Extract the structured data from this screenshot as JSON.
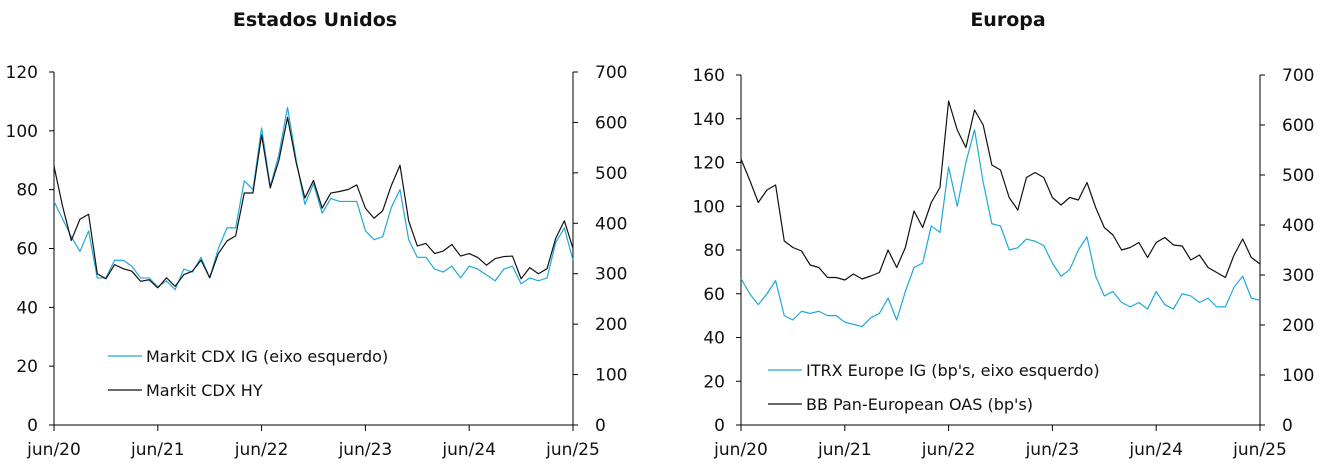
{
  "colors": {
    "ig": "#1fa9d9",
    "hy": "#111111",
    "axis": "#000000"
  },
  "chart_data": [
    {
      "type": "line",
      "title": "Estados Unidos",
      "xlabel": "",
      "ylabel": "",
      "x_ticks": [
        "jun/20",
        "jun/21",
        "jun/22",
        "jun/23",
        "jun/24",
        "jun/25"
      ],
      "x_range": [
        0,
        60
      ],
      "y_left": {
        "lim": [
          0,
          120
        ],
        "ticks": [
          0,
          20,
          40,
          60,
          80,
          100,
          120
        ]
      },
      "y_right": {
        "lim": [
          0,
          700
        ],
        "ticks": [
          0,
          100,
          200,
          300,
          400,
          500,
          600,
          700
        ]
      },
      "legend_position": "bottom-left",
      "series": [
        {
          "name": "Markit CDX IG (eixo esquerdo)",
          "axis": "left",
          "color_key": "ig",
          "x": [
            0,
            1,
            2,
            3,
            4,
            5,
            6,
            7,
            8,
            9,
            10,
            11,
            12,
            13,
            14,
            15,
            16,
            17,
            18,
            19,
            20,
            21,
            22,
            23,
            24,
            25,
            26,
            27,
            28,
            29,
            30,
            31,
            32,
            33,
            34,
            35,
            36,
            37,
            38,
            39,
            40,
            41,
            42,
            43,
            44,
            45,
            46,
            47,
            48,
            49,
            50,
            51,
            52,
            53,
            54,
            55,
            56,
            57,
            58,
            59,
            60
          ],
          "values": [
            76,
            70,
            64,
            59,
            66,
            50,
            50,
            56,
            56,
            54,
            50,
            50,
            47,
            49,
            46,
            53,
            52,
            57,
            50,
            60,
            67,
            67,
            83,
            80,
            101,
            81,
            92,
            108,
            90,
            75,
            82,
            72,
            77,
            76,
            76,
            76,
            66,
            63,
            64,
            74,
            80,
            63,
            57,
            57,
            53,
            52,
            54,
            50,
            54,
            53,
            51,
            49,
            53,
            54,
            48,
            50,
            49,
            50,
            62,
            67,
            56
          ]
        },
        {
          "name": "Markit CDX HY",
          "axis": "right",
          "color_key": "hy",
          "x": [
            0,
            1,
            2,
            3,
            4,
            5,
            6,
            7,
            8,
            9,
            10,
            11,
            12,
            13,
            14,
            15,
            16,
            17,
            18,
            19,
            20,
            21,
            22,
            23,
            24,
            25,
            26,
            27,
            28,
            29,
            30,
            31,
            32,
            33,
            34,
            35,
            36,
            37,
            38,
            39,
            40,
            41,
            42,
            43,
            44,
            45,
            46,
            47,
            48,
            49,
            50,
            51,
            52,
            53,
            54,
            55,
            56,
            57,
            58,
            59,
            60
          ],
          "values": [
            513,
            433,
            366,
            408,
            418,
            300,
            290,
            318,
            310,
            305,
            285,
            288,
            272,
            292,
            275,
            298,
            305,
            327,
            292,
            340,
            365,
            375,
            460,
            460,
            575,
            470,
            525,
            610,
            520,
            450,
            485,
            430,
            460,
            463,
            467,
            476,
            430,
            410,
            425,
            475,
            515,
            405,
            355,
            360,
            340,
            345,
            358,
            335,
            340,
            332,
            317,
            330,
            334,
            335,
            290,
            312,
            300,
            310,
            370,
            405,
            350
          ]
        }
      ]
    },
    {
      "type": "line",
      "title": "Europa",
      "xlabel": "",
      "ylabel": "",
      "x_ticks": [
        "jun/20",
        "jun/21",
        "jun/22",
        "jun/23",
        "jun/24",
        "jun/25"
      ],
      "x_range": [
        0,
        60
      ],
      "y_left": {
        "lim": [
          0,
          160
        ],
        "ticks": [
          0,
          20,
          40,
          60,
          80,
          100,
          120,
          140,
          160
        ]
      },
      "y_right": {
        "lim": [
          0,
          700
        ],
        "ticks": [
          0,
          100,
          200,
          300,
          400,
          500,
          600,
          700
        ]
      },
      "legend_position": "bottom-left",
      "series": [
        {
          "name": "ITRX Europe IG (bp's, eixo esquerdo)",
          "axis": "left",
          "color_key": "ig",
          "x": [
            0,
            1,
            2,
            3,
            4,
            5,
            6,
            7,
            8,
            9,
            10,
            11,
            12,
            13,
            14,
            15,
            16,
            17,
            18,
            19,
            20,
            21,
            22,
            23,
            24,
            25,
            26,
            27,
            28,
            29,
            30,
            31,
            32,
            33,
            34,
            35,
            36,
            37,
            38,
            39,
            40,
            41,
            42,
            43,
            44,
            45,
            46,
            47,
            48,
            49,
            50,
            51,
            52,
            53,
            54,
            55,
            56,
            57,
            58,
            59,
            60
          ],
          "values": [
            67,
            60,
            55,
            60,
            66,
            50,
            48,
            52,
            51,
            52,
            50,
            50,
            47,
            46,
            45,
            49,
            51,
            58,
            48,
            61,
            72,
            74,
            91,
            88,
            118,
            100,
            120,
            135,
            111,
            92,
            91,
            80,
            81,
            85,
            84,
            82,
            74,
            68,
            71,
            80,
            86,
            68,
            59,
            61,
            56,
            54,
            56,
            53,
            61,
            55,
            53,
            60,
            59,
            56,
            58,
            54,
            54,
            63,
            68,
            58,
            57
          ]
        },
        {
          "name": "BB Pan-European OAS (bp's)",
          "axis": "right",
          "color_key": "hy",
          "x": [
            0,
            1,
            2,
            3,
            4,
            5,
            6,
            7,
            8,
            9,
            10,
            11,
            12,
            13,
            14,
            15,
            16,
            17,
            18,
            19,
            20,
            21,
            22,
            23,
            24,
            25,
            26,
            27,
            28,
            29,
            30,
            31,
            32,
            33,
            34,
            35,
            36,
            37,
            38,
            39,
            40,
            41,
            42,
            43,
            44,
            45,
            46,
            47,
            48,
            49,
            50,
            51,
            52,
            53,
            54,
            55,
            56,
            57,
            58,
            59,
            60
          ],
          "values": [
            532,
            490,
            445,
            470,
            480,
            368,
            355,
            348,
            320,
            315,
            295,
            295,
            290,
            302,
            292,
            298,
            305,
            350,
            315,
            355,
            428,
            395,
            445,
            475,
            648,
            590,
            555,
            630,
            600,
            520,
            510,
            455,
            430,
            495,
            505,
            495,
            455,
            440,
            455,
            450,
            485,
            435,
            395,
            380,
            350,
            355,
            365,
            335,
            365,
            375,
            360,
            358,
            330,
            340,
            315,
            305,
            295,
            340,
            372,
            335,
            322
          ]
        }
      ]
    }
  ]
}
